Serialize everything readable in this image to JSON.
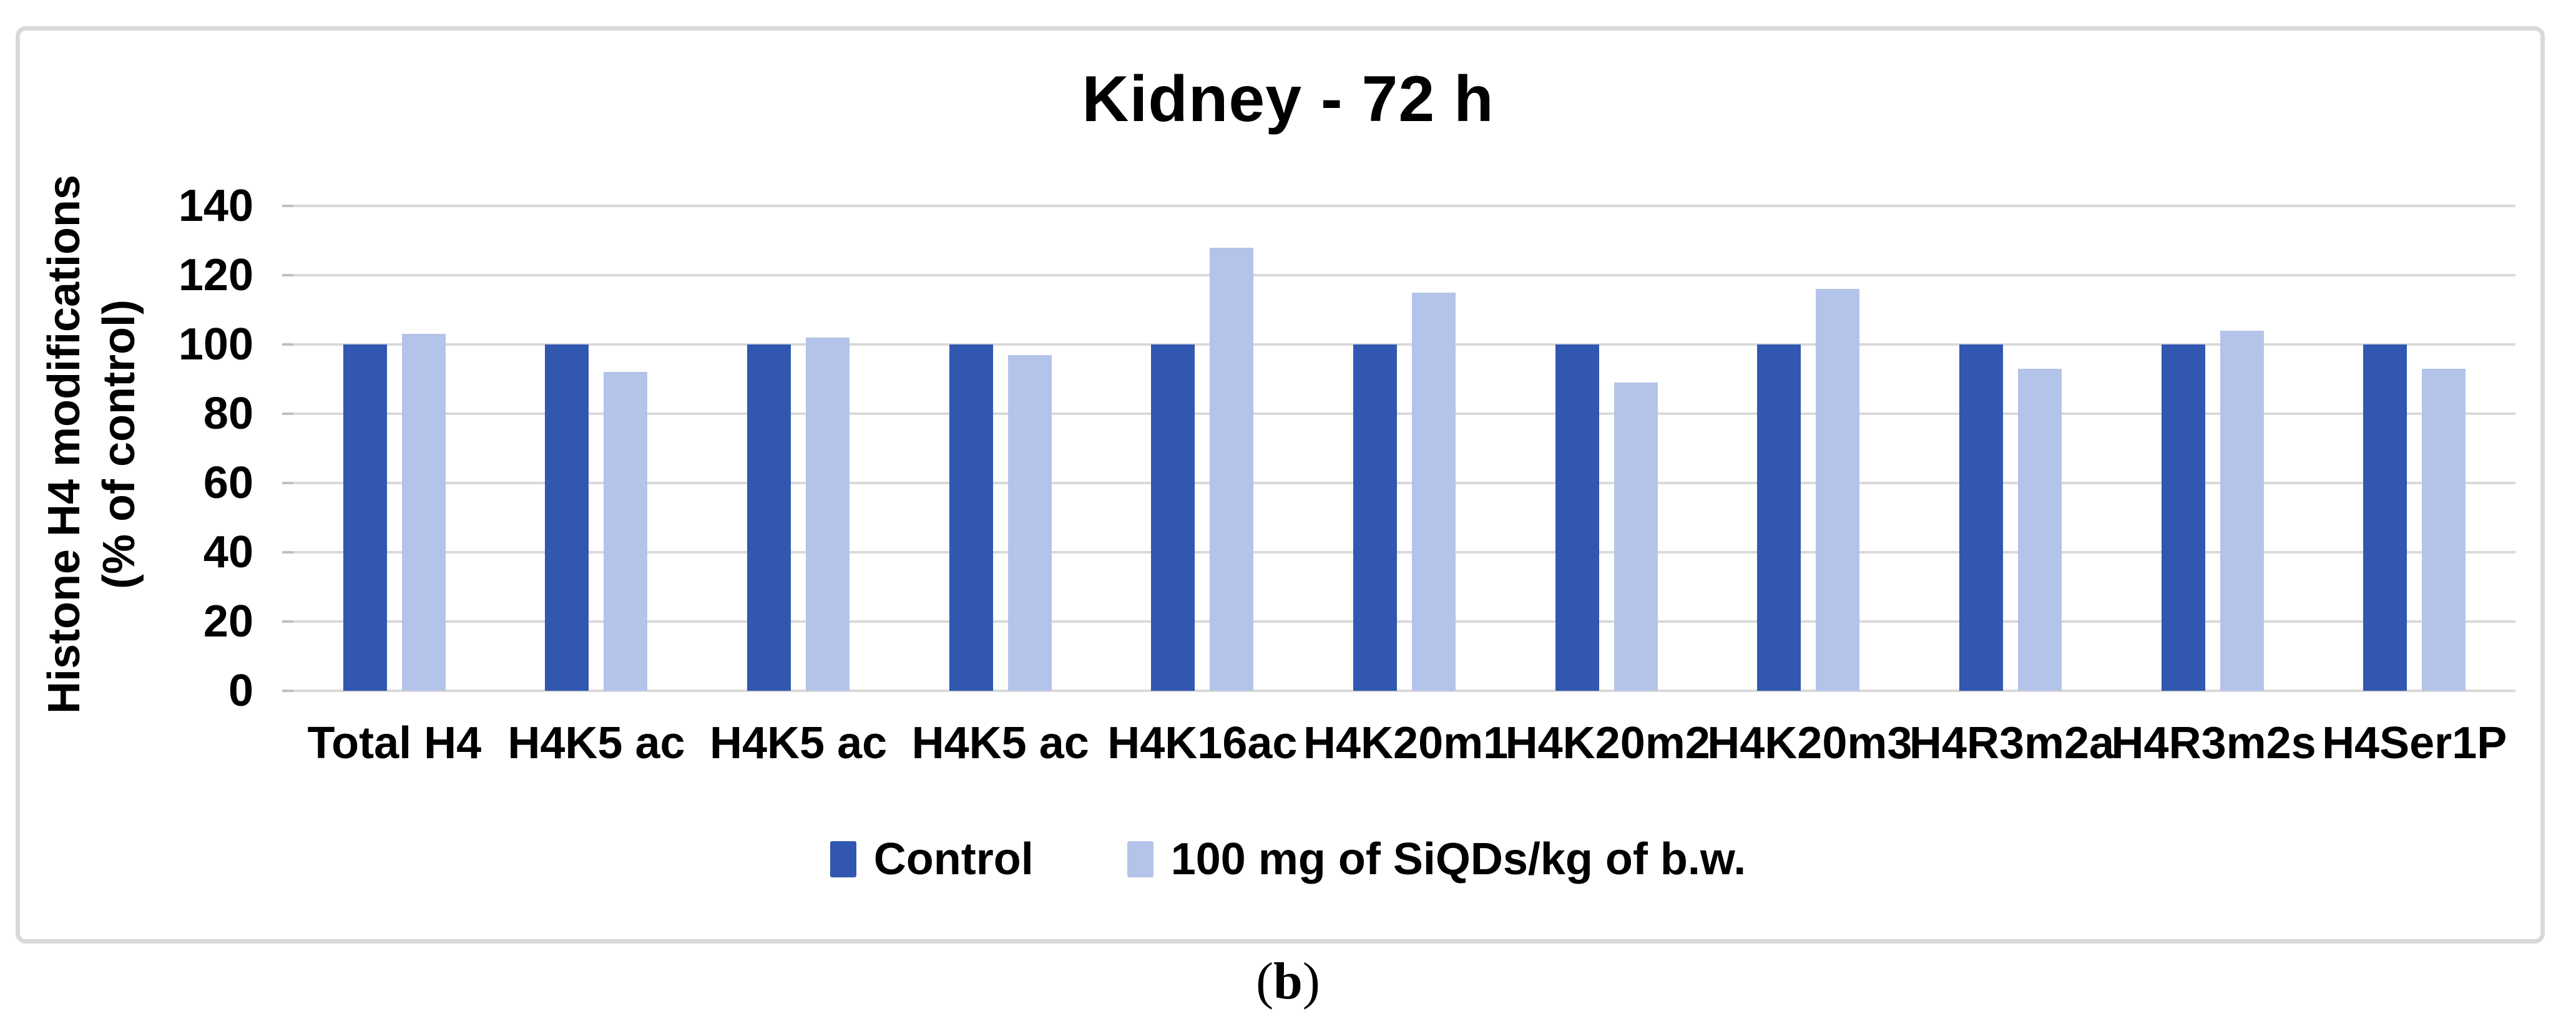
{
  "figure": {
    "title": "Kidney - 72 h",
    "y_axis_title_line1": "Histone H4 modifications",
    "y_axis_title_line2": "(% of control)",
    "caption": {
      "open": "(",
      "letter": "b",
      "close": ")"
    }
  },
  "chart_data": {
    "type": "bar",
    "title": "Kidney - 72 h",
    "categories": [
      "Total H4",
      "H4K5 ac",
      "H4K5 ac",
      "H4K5 ac",
      "H4K16ac",
      "H4K20m1",
      "H4K20m2",
      "H4K20m3",
      "H4R3m2a",
      "H4R3m2s",
      "H4Ser1P"
    ],
    "series": [
      {
        "name": "Control",
        "color": "#3157B1",
        "values": [
          100,
          100,
          100,
          100,
          100,
          100,
          100,
          100,
          100,
          100,
          100
        ]
      },
      {
        "name": "100 mg of SiQDs/kg of b.w.",
        "color": "#B4C3E9",
        "values": [
          103,
          92,
          102,
          97,
          128,
          115,
          89,
          116,
          93,
          104,
          93
        ]
      }
    ],
    "xlabel": "",
    "ylabel": "Histone H4 modifications (% of control)",
    "ylim": [
      0,
      140
    ],
    "yticks": [
      0,
      20,
      40,
      60,
      80,
      100,
      120,
      140
    ],
    "grid": true,
    "legend_position": "bottom"
  },
  "colors": {
    "background": "#FFFFFF",
    "frame_border": "#D9D9D9",
    "gridline": "#D9D9D9",
    "control_bar": "#3157B1",
    "treated_bar": "#B4C3E9",
    "text": "#000000"
  }
}
